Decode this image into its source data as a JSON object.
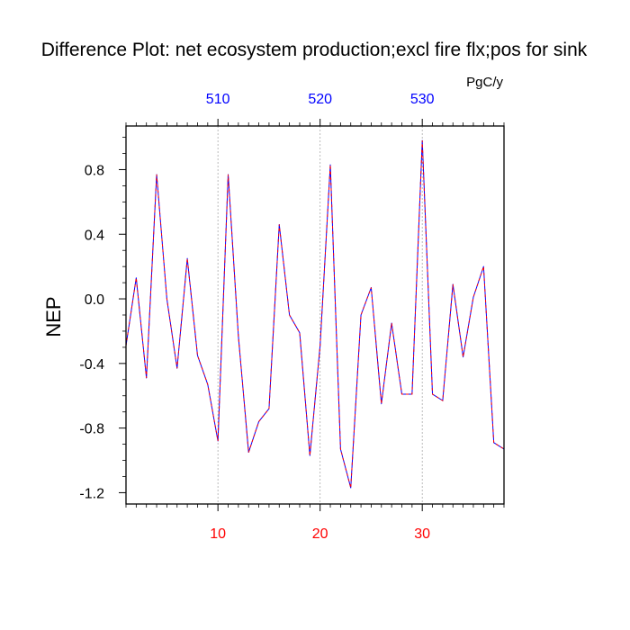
{
  "chart_data": {
    "type": "line",
    "title": "Difference Plot: net ecosystem production;excl fire flx;pos for sink",
    "units": "PgC/y",
    "ylabel": "NEP",
    "xlabel": "",
    "xlim": [
      1,
      38
    ],
    "ylim": [
      -1.27,
      1.07
    ],
    "grid": "vertical dashed at x = 10, 20, 30",
    "legend": "none",
    "x_ticks_bottom": [
      {
        "value": 10,
        "label": "10"
      },
      {
        "value": 20,
        "label": "20"
      },
      {
        "value": 30,
        "label": "30"
      }
    ],
    "x_ticks_top": [
      {
        "value": 10,
        "label": "510"
      },
      {
        "value": 20,
        "label": "520"
      },
      {
        "value": 30,
        "label": "530"
      }
    ],
    "y_ticks": [
      {
        "value": 0.8,
        "label": "0.8"
      },
      {
        "value": 0.4,
        "label": "0.4"
      },
      {
        "value": 0.0,
        "label": "0.0"
      },
      {
        "value": -0.4,
        "label": "-0.4"
      },
      {
        "value": -0.8,
        "label": "-0.8"
      },
      {
        "value": -1.2,
        "label": "-1.2"
      }
    ],
    "colors": {
      "bottom_tick_labels": "#ff0000",
      "top_tick_labels": "#0000ff",
      "line_base": "#0000ff",
      "line_dash": "#ff0000",
      "grid": "#aaaaaa",
      "text": "#000000"
    },
    "series": [
      {
        "x": [
          1,
          2,
          3,
          4,
          5,
          6,
          7,
          8,
          9,
          10,
          11,
          12,
          13,
          14,
          15,
          16,
          17,
          18,
          19,
          20,
          21,
          22,
          23,
          24,
          25,
          26,
          27,
          28,
          29,
          30,
          31,
          32,
          33,
          34,
          35,
          36,
          37,
          38
        ],
        "values": [
          -0.29,
          0.13,
          -0.49,
          0.77,
          0.0,
          -0.43,
          0.25,
          -0.35,
          -0.53,
          -0.88,
          0.77,
          -0.23,
          -0.95,
          -0.76,
          -0.68,
          0.46,
          -0.1,
          -0.21,
          -0.97,
          -0.29,
          0.83,
          -0.93,
          -1.17,
          -0.1,
          0.07,
          -0.65,
          -0.15,
          -0.59,
          -0.59,
          0.98,
          -0.59,
          -0.63,
          0.09,
          -0.36,
          0.01,
          0.2,
          -0.89,
          -0.93
        ]
      }
    ]
  }
}
